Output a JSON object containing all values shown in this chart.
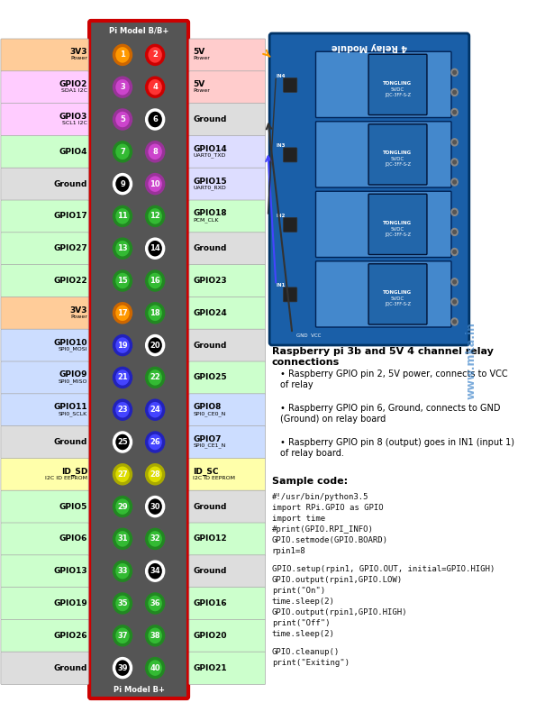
{
  "title": "Pi Model B/B+",
  "subtitle_bottom": "Pi Model B+",
  "bg_color": "#ffffff",
  "pin_panel_bg": "#555555",
  "pin_panel_border": "#cc0000",
  "rows": [
    {
      "left_label": "3V3\nPower",
      "left_bg": "#ffcc99",
      "left_bold": true,
      "pin1": 1,
      "pin1_color": "#ff9900",
      "pin1_outline": "#cc6600",
      "pin2": 2,
      "pin2_color": "#ff3333",
      "pin2_outline": "#cc0000",
      "right_label": "5V\nPower",
      "right_bg": "#ffcccc",
      "right_bold": false
    },
    {
      "left_label": "GPIO2\nSDA1 I2C",
      "left_bg": "#ffccff",
      "left_bold": true,
      "pin1": 3,
      "pin1_color": "#cc44cc",
      "pin1_outline": "#993399",
      "pin2": 4,
      "pin2_color": "#ff3333",
      "pin2_outline": "#cc0000",
      "right_label": "5V\nPower",
      "right_bg": "#ffcccc",
      "right_bold": false
    },
    {
      "left_label": "GPIO3\nSCL1 I2C",
      "left_bg": "#ffccff",
      "left_bold": true,
      "pin1": 5,
      "pin1_color": "#cc44cc",
      "pin1_outline": "#993399",
      "pin2": 6,
      "pin2_color": "#000000",
      "pin2_outline": "#ffffff",
      "right_label": "Ground",
      "right_bg": "#dddddd",
      "right_bold": true
    },
    {
      "left_label": "GPIO4",
      "left_bg": "#ccffcc",
      "left_bold": true,
      "pin1": 7,
      "pin1_color": "#33bb33",
      "pin1_outline": "#228822",
      "pin2": 8,
      "pin2_color": "#cc44cc",
      "pin2_outline": "#993399",
      "right_label": "GPIO14\nUART0_TXD",
      "right_bg": "#ddddff",
      "right_bold": false
    },
    {
      "left_label": "Ground",
      "left_bg": "#dddddd",
      "left_bold": true,
      "pin1": 9,
      "pin1_color": "#000000",
      "pin1_outline": "#ffffff",
      "pin2": 10,
      "pin2_color": "#cc44cc",
      "pin2_outline": "#993399",
      "right_label": "GPIO15\nUART0_RXD",
      "right_bg": "#ddddff",
      "right_bold": false
    },
    {
      "left_label": "GPIO17",
      "left_bg": "#ccffcc",
      "left_bold": true,
      "pin1": 11,
      "pin1_color": "#33bb33",
      "pin1_outline": "#228822",
      "pin2": 12,
      "pin2_color": "#33bb33",
      "pin2_outline": "#228822",
      "right_label": "GPIO18\nPCM_CLK",
      "right_bg": "#ccffcc",
      "right_bold": false
    },
    {
      "left_label": "GPIO27",
      "left_bg": "#ccffcc",
      "left_bold": true,
      "pin1": 13,
      "pin1_color": "#33bb33",
      "pin1_outline": "#228822",
      "pin2": 14,
      "pin2_color": "#000000",
      "pin2_outline": "#ffffff",
      "right_label": "Ground",
      "right_bg": "#dddddd",
      "right_bold": true
    },
    {
      "left_label": "GPIO22",
      "left_bg": "#ccffcc",
      "left_bold": true,
      "pin1": 15,
      "pin1_color": "#33bb33",
      "pin1_outline": "#228822",
      "pin2": 16,
      "pin2_color": "#33bb33",
      "pin2_outline": "#228822",
      "right_label": "GPIO23",
      "right_bg": "#ccffcc",
      "right_bold": true
    },
    {
      "left_label": "3V3\nPower",
      "left_bg": "#ffcc99",
      "left_bold": true,
      "pin1": 17,
      "pin1_color": "#ff9900",
      "pin1_outline": "#cc6600",
      "pin2": 18,
      "pin2_color": "#33bb33",
      "pin2_outline": "#228822",
      "right_label": "GPIO24",
      "right_bg": "#ccffcc",
      "right_bold": true
    },
    {
      "left_label": "GPIO10\nSPI0_MOSI",
      "left_bg": "#ccddff",
      "left_bold": true,
      "pin1": 19,
      "pin1_color": "#4444ff",
      "pin1_outline": "#2222bb",
      "pin2": 20,
      "pin2_color": "#000000",
      "pin2_outline": "#ffffff",
      "right_label": "Ground",
      "right_bg": "#dddddd",
      "right_bold": true
    },
    {
      "left_label": "GPIO9\nSPI0_MISO",
      "left_bg": "#ccddff",
      "left_bold": true,
      "pin1": 21,
      "pin1_color": "#4444ff",
      "pin1_outline": "#2222bb",
      "pin2": 22,
      "pin2_color": "#33bb33",
      "pin2_outline": "#228822",
      "right_label": "GPIO25",
      "right_bg": "#ccffcc",
      "right_bold": true
    },
    {
      "left_label": "GPIO11\nSPI0_SCLK",
      "left_bg": "#ccddff",
      "left_bold": true,
      "pin1": 23,
      "pin1_color": "#4444ff",
      "pin1_outline": "#2222bb",
      "pin2": 24,
      "pin2_color": "#4444ff",
      "pin2_outline": "#2222bb",
      "right_label": "GPIO8\nSPI0_CE0_N",
      "right_bg": "#ccddff",
      "right_bold": false
    },
    {
      "left_label": "Ground",
      "left_bg": "#dddddd",
      "left_bold": true,
      "pin1": 25,
      "pin1_color": "#000000",
      "pin1_outline": "#ffffff",
      "pin2": 26,
      "pin2_color": "#4444ff",
      "pin2_outline": "#2222bb",
      "right_label": "GPIO7\nSPI0_CE1_N",
      "right_bg": "#ccddff",
      "right_bold": false
    },
    {
      "left_label": "ID_SD\nI2C ID EEPROM",
      "left_bg": "#ffffaa",
      "left_bold": true,
      "pin1": 27,
      "pin1_color": "#dddd00",
      "pin1_outline": "#aaaa00",
      "pin2": 28,
      "pin2_color": "#dddd00",
      "pin2_outline": "#aaaa00",
      "right_label": "ID_SC\nI2C ID EEPROM",
      "right_bg": "#ffffaa",
      "right_bold": false
    },
    {
      "left_label": "GPIO5",
      "left_bg": "#ccffcc",
      "left_bold": true,
      "pin1": 29,
      "pin1_color": "#33bb33",
      "pin1_outline": "#228822",
      "pin2": 30,
      "pin2_color": "#000000",
      "pin2_outline": "#ffffff",
      "right_label": "Ground",
      "right_bg": "#dddddd",
      "right_bold": true
    },
    {
      "left_label": "GPIO6",
      "left_bg": "#ccffcc",
      "left_bold": true,
      "pin1": 31,
      "pin1_color": "#33bb33",
      "pin1_outline": "#228822",
      "pin2": 32,
      "pin2_color": "#33bb33",
      "pin2_outline": "#228822",
      "right_label": "GPIO12",
      "right_bg": "#ccffcc",
      "right_bold": true
    },
    {
      "left_label": "GPIO13",
      "left_bg": "#ccffcc",
      "left_bold": true,
      "pin1": 33,
      "pin1_color": "#33bb33",
      "pin1_outline": "#228822",
      "pin2": 34,
      "pin2_color": "#000000",
      "pin2_outline": "#ffffff",
      "right_label": "Ground",
      "right_bg": "#dddddd",
      "right_bold": true
    },
    {
      "left_label": "GPIO19",
      "left_bg": "#ccffcc",
      "left_bold": true,
      "pin1": 35,
      "pin1_color": "#33bb33",
      "pin1_outline": "#228822",
      "pin2": 36,
      "pin2_color": "#33bb33",
      "pin2_outline": "#228822",
      "right_label": "GPIO16",
      "right_bg": "#ccffcc",
      "right_bold": true
    },
    {
      "left_label": "GPIO26",
      "left_bg": "#ccffcc",
      "left_bold": true,
      "pin1": 37,
      "pin1_color": "#33bb33",
      "pin1_outline": "#228822",
      "pin2": 38,
      "pin2_color": "#33bb33",
      "pin2_outline": "#228822",
      "right_label": "GPIO20",
      "right_bg": "#ccffcc",
      "right_bold": true
    },
    {
      "left_label": "Ground",
      "left_bg": "#dddddd",
      "left_bold": true,
      "pin1": 39,
      "pin1_color": "#000000",
      "pin1_outline": "#ffffff",
      "pin2": 40,
      "pin2_color": "#33bb33",
      "pin2_outline": "#228822",
      "right_label": "GPIO21",
      "right_bg": "#ccffcc",
      "right_bold": true
    }
  ],
  "bullet_points": [
    "Raspberry GPIO pin 2, 5V power, connects to VCC\nof relay",
    "Raspberry GPIO pin 6, Ground, connects to GND\n(Ground) on relay board",
    "Raspberry GPIO pin 8 (output) goes in IN1 (input 1)\nof relay board."
  ],
  "code_lines": [
    "#!/usr/bin/python3.5",
    "import RPi.GPIO as GPIO",
    "import time",
    "#print(GPIO.RPI_INFO)",
    "GPIO.setmode(GPIO.BOARD)",
    "rpin1=8",
    "",
    "GPIO.setup(rpin1, GPIO.OUT, initial=GPIO.HIGH)",
    "GPIO.output(rpin1,GPIO.LOW)",
    "print(\"On\")",
    "time.sleep(2)",
    "GPIO.output(rpin1,GPIO.HIGH)",
    "print(\"Off\")",
    "time.sleep(2)",
    "",
    "GPIO.cleanup()",
    "print(\"Exiting\")"
  ],
  "watermark": "www.mka.in",
  "diagram_title": "Raspberry pi 3b and 5V 4 channel relay connections",
  "sample_code_label": "Sample code:"
}
